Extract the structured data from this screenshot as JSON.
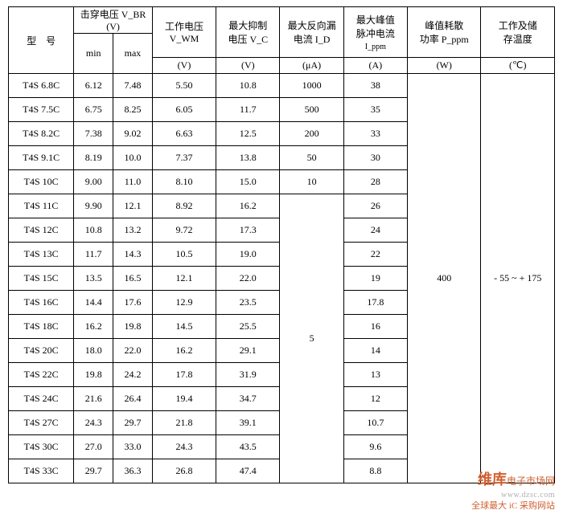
{
  "headers": {
    "model": "型　号",
    "vbr": "击穿电压 V_BR",
    "vbr_unit": "(V)",
    "min": "min",
    "max": "max",
    "vwm": "工作电压",
    "vwm_sym": "V_WM",
    "vwm_unit": "(V)",
    "vc": "最大抑制",
    "vc_sym": "电压 V_C",
    "vc_unit": "(V)",
    "id": "最大反向漏",
    "id_sym": "电流 I_D",
    "id_unit": "(μA)",
    "ippm": "最大峰值",
    "ippm2": "脉冲电流",
    "ippm_sym": "I_ppm",
    "ippm_unit": "(A)",
    "pppm": "峰值耗散",
    "pppm_sym": "功率 P_ppm",
    "pppm_unit": "(W)",
    "temp": "工作及储",
    "temp2": "存温度",
    "temp_unit": "(℃)"
  },
  "shared": {
    "id_5": "5",
    "pppm_400": "400",
    "temp_range": "- 55 ~ + 175"
  },
  "rows": [
    {
      "model": "T4S 6.8C",
      "min": "6.12",
      "max": "7.48",
      "vwm": "5.50",
      "vc": "10.8",
      "id": "1000",
      "ippm": "38"
    },
    {
      "model": "T4S 7.5C",
      "min": "6.75",
      "max": "8.25",
      "vwm": "6.05",
      "vc": "11.7",
      "id": "500",
      "ippm": "35"
    },
    {
      "model": "T4S 8.2C",
      "min": "7.38",
      "max": "9.02",
      "vwm": "6.63",
      "vc": "12.5",
      "id": "200",
      "ippm": "33"
    },
    {
      "model": "T4S 9.1C",
      "min": "8.19",
      "max": "10.0",
      "vwm": "7.37",
      "vc": "13.8",
      "id": "50",
      "ippm": "30"
    },
    {
      "model": "T4S 10C",
      "min": "9.00",
      "max": "11.0",
      "vwm": "8.10",
      "vc": "15.0",
      "id": "10",
      "ippm": "28"
    },
    {
      "model": "T4S 11C",
      "min": "9.90",
      "max": "12.1",
      "vwm": "8.92",
      "vc": "16.2",
      "ippm": "26"
    },
    {
      "model": "T4S 12C",
      "min": "10.8",
      "max": "13.2",
      "vwm": "9.72",
      "vc": "17.3",
      "ippm": "24"
    },
    {
      "model": "T4S 13C",
      "min": "11.7",
      "max": "14.3",
      "vwm": "10.5",
      "vc": "19.0",
      "ippm": "22"
    },
    {
      "model": "T4S 15C",
      "min": "13.5",
      "max": "16.5",
      "vwm": "12.1",
      "vc": "22.0",
      "ippm": "19"
    },
    {
      "model": "T4S 16C",
      "min": "14.4",
      "max": "17.6",
      "vwm": "12.9",
      "vc": "23.5",
      "ippm": "17.8"
    },
    {
      "model": "T4S 18C",
      "min": "16.2",
      "max": "19.8",
      "vwm": "14.5",
      "vc": "25.5",
      "ippm": "16"
    },
    {
      "model": "T4S 20C",
      "min": "18.0",
      "max": "22.0",
      "vwm": "16.2",
      "vc": "29.1",
      "ippm": "14"
    },
    {
      "model": "T4S 22C",
      "min": "19.8",
      "max": "24.2",
      "vwm": "17.8",
      "vc": "31.9",
      "ippm": "13"
    },
    {
      "model": "T4S 24C",
      "min": "21.6",
      "max": "26.4",
      "vwm": "19.4",
      "vc": "34.7",
      "ippm": "12"
    },
    {
      "model": "T4S 27C",
      "min": "24.3",
      "max": "29.7",
      "vwm": "21.8",
      "vc": "39.1",
      "ippm": "10.7"
    },
    {
      "model": "T4S 30C",
      "min": "27.0",
      "max": "33.0",
      "vwm": "24.3",
      "vc": "43.5",
      "ippm": "9.6"
    },
    {
      "model": "T4S 33C",
      "min": "29.7",
      "max": "36.3",
      "vwm": "26.8",
      "vc": "47.4",
      "ippm": "8.8"
    }
  ],
  "watermark": {
    "brand": "维库",
    "brand2": "电子市场网",
    "url": "www.dzsc.com",
    "ic": "全球最大 iC 采购网站"
  }
}
